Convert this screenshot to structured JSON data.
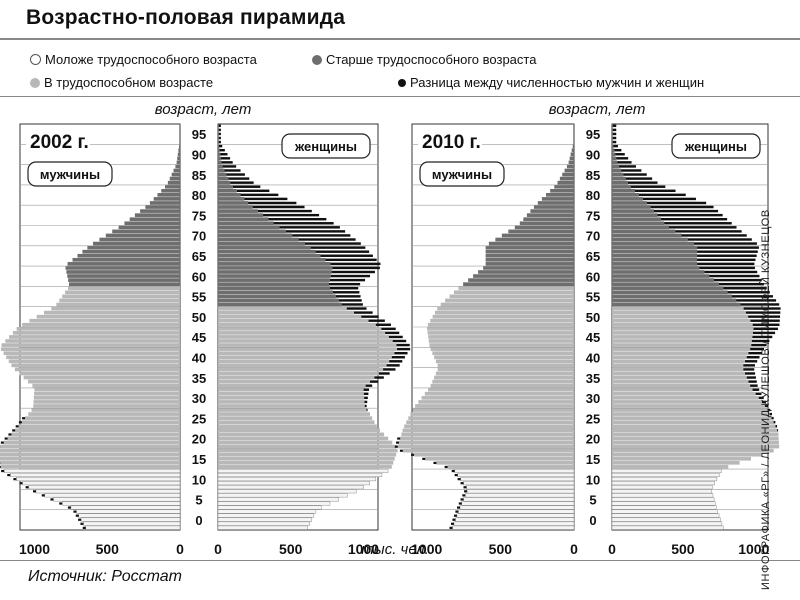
{
  "header": {
    "title": "Возрастно-половая пирамида",
    "credit": "ИНФОГРАФИКА «РГ» / ЛЕОНИД КУЛЕШОВ / ТИМОФЕЙ КУЗНЕЦОВ"
  },
  "legend": {
    "young": "Моложе трудоспособного возраста",
    "old": "Старше трудоспособного возраста",
    "working": "В трудоспособном возрасте",
    "diff": "Разница между численностью мужчин и женщин"
  },
  "footer": {
    "source": "Источник: Росстат"
  },
  "chart_data": [
    {
      "type": "bar",
      "title": "2002 г.",
      "ylabel": "возраст, лет",
      "xlabel": "тыс. чел.",
      "male_label": "мужчины",
      "female_label": "женщины",
      "age_ticks": [
        "0",
        "5",
        "10",
        "15",
        "20",
        "25",
        "30",
        "35",
        "40",
        "45",
        "50",
        "55",
        "60",
        "65",
        "70",
        "75",
        "80",
        "85",
        "90",
        "95"
      ],
      "x_ticks": [
        "1000",
        "500",
        "0"
      ],
      "x_ticks_right": [
        "0",
        "500",
        "1000"
      ],
      "xlim": [
        0,
        1100
      ],
      "ages": [
        0,
        5,
        10,
        15,
        20,
        25,
        30,
        35,
        40,
        45,
        50,
        55,
        60,
        65,
        70,
        75,
        80,
        85,
        90,
        95
      ],
      "male": [
        640,
        720,
        1020,
        1230,
        1250,
        1120,
        1010,
        1000,
        1150,
        1240,
        1110,
        860,
        760,
        790,
        620,
        400,
        220,
        90,
        25,
        5
      ],
      "female": [
        610,
        680,
        980,
        1190,
        1240,
        1100,
        1020,
        1040,
        1240,
        1330,
        1210,
        1000,
        960,
        1130,
        1000,
        820,
        570,
        260,
        110,
        20
      ],
      "diff": [
        -30,
        -40,
        -40,
        -40,
        -10,
        -20,
        10,
        40,
        90,
        90,
        100,
        140,
        200,
        340,
        380,
        420,
        350,
        170,
        85,
        15
      ],
      "young_max_age": 15,
      "old_min_female_age": 55,
      "old_min_male_age": 60
    },
    {
      "type": "bar",
      "title": "2010 г.",
      "ylabel": "возраст, лет",
      "xlabel": "",
      "male_label": "мужчины",
      "female_label": "женщины",
      "age_ticks": [
        "0",
        "5",
        "10",
        "15",
        "20",
        "25",
        "30",
        "35",
        "40",
        "45",
        "50",
        "55",
        "60",
        "65",
        "70",
        "75",
        "80",
        "85",
        "90",
        "95"
      ],
      "x_ticks": [
        "1000",
        "500",
        "0"
      ],
      "x_ticks_right": [
        "0",
        "500",
        "1000"
      ],
      "xlim": [
        0,
        1100
      ],
      "ages": [
        0,
        5,
        10,
        15,
        20,
        25,
        30,
        35,
        40,
        45,
        50,
        55,
        60,
        65,
        70,
        75,
        80,
        85,
        90,
        95
      ],
      "male": [
        830,
        780,
        720,
        820,
        1200,
        1160,
        1090,
        980,
        920,
        980,
        1000,
        920,
        770,
        600,
        600,
        380,
        260,
        120,
        40,
        5
      ],
      "female": [
        790,
        740,
        700,
        780,
        1180,
        1170,
        1110,
        1030,
        1000,
        1080,
        1180,
        1190,
        1080,
        1000,
        1040,
        860,
        700,
        340,
        150,
        30
      ],
      "diff": [
        -40,
        -40,
        -20,
        -40,
        -20,
        10,
        20,
        50,
        80,
        100,
        180,
        270,
        310,
        400,
        440,
        480,
        440,
        220,
        110,
        25
      ],
      "young_max_age": 15,
      "old_min_female_age": 55,
      "old_min_male_age": 60
    }
  ],
  "colors": {
    "working": "#b8b8b8",
    "old": "#6e6e6e",
    "young": "#f4f4f4",
    "diff_line": "#111111",
    "grid": "#9a9a9a"
  }
}
